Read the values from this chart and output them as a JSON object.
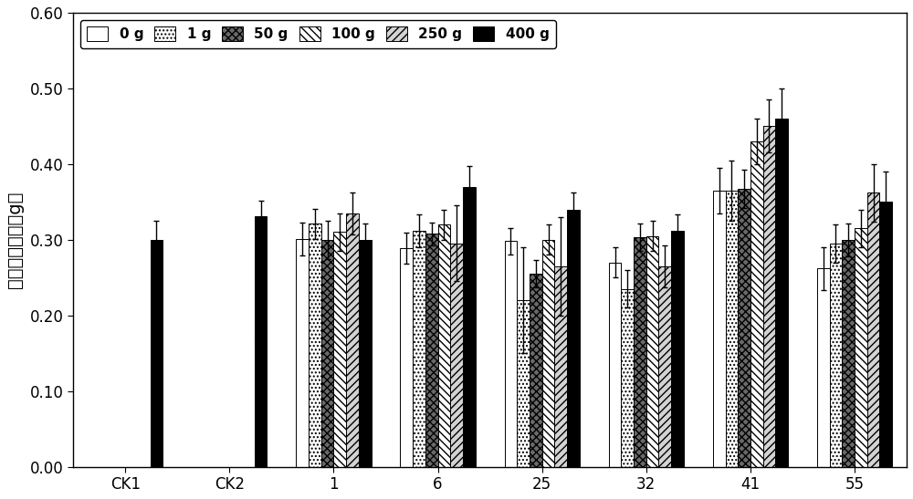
{
  "categories": [
    "CK1",
    "CK2",
    "1",
    "6",
    "25",
    "32",
    "41",
    "55"
  ],
  "series_labels": [
    "0 g",
    "1 g",
    "50 g",
    "100 g",
    "250 g",
    "400 g"
  ],
  "values": [
    [
      null,
      null,
      0.301,
      0.289,
      0.298,
      0.27,
      0.365,
      0.262
    ],
    [
      null,
      null,
      0.321,
      0.312,
      0.22,
      0.235,
      0.365,
      0.295
    ],
    [
      null,
      null,
      0.3,
      0.308,
      0.255,
      0.303,
      0.367,
      0.3
    ],
    [
      null,
      null,
      0.31,
      0.32,
      0.3,
      0.305,
      0.43,
      0.315
    ],
    [
      null,
      null,
      0.335,
      0.295,
      0.265,
      0.265,
      0.45,
      0.362
    ],
    [
      0.3,
      0.331,
      0.3,
      0.37,
      0.34,
      0.312,
      0.46,
      0.35
    ]
  ],
  "errors": [
    [
      null,
      null,
      0.022,
      0.02,
      0.018,
      0.02,
      0.03,
      0.028
    ],
    [
      null,
      null,
      0.02,
      0.022,
      0.07,
      0.025,
      0.04,
      0.025
    ],
    [
      null,
      null,
      0.025,
      0.015,
      0.018,
      0.018,
      0.025,
      0.022
    ],
    [
      null,
      null,
      0.025,
      0.02,
      0.02,
      0.02,
      0.03,
      0.025
    ],
    [
      null,
      null,
      0.028,
      0.05,
      0.065,
      0.028,
      0.035,
      0.038
    ],
    [
      0.025,
      0.02,
      0.022,
      0.028,
      0.022,
      0.022,
      0.04,
      0.04
    ]
  ],
  "ylabel": "地下部分干重（g）",
  "ylim": [
    0.0,
    0.6
  ],
  "yticks": [
    0.0,
    0.1,
    0.2,
    0.3,
    0.4,
    0.5,
    0.6
  ],
  "bar_width": 0.12,
  "figsize": [
    10.0,
    5.47
  ],
  "dpi": 100,
  "background_color": "#ffffff"
}
